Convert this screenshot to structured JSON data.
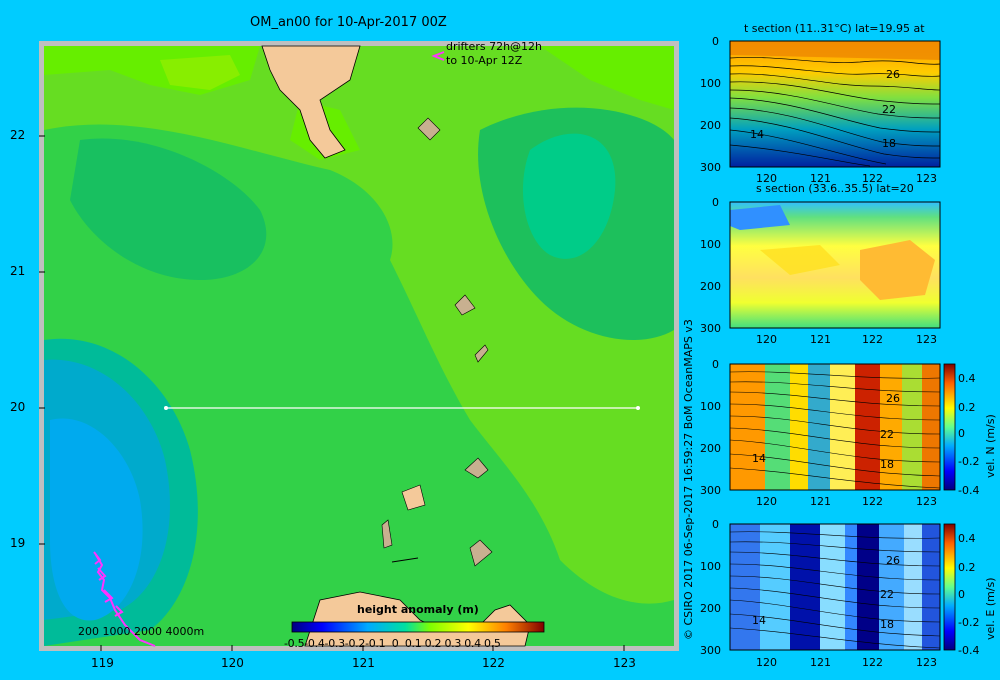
{
  "map": {
    "title": "OM_an00 for 10-Apr-2017 00Z",
    "drifters_line1": "drifters 72h@12h",
    "drifters_line2": "to 10-Apr 12Z",
    "lat_ticks": [
      "22",
      "21",
      "20",
      "19"
    ],
    "lon_ticks": [
      "119",
      "120",
      "121",
      "122",
      "123"
    ],
    "depth_legend": "200  1000  2000  4000m",
    "colorbar_label": "height anomaly (m)",
    "colorbar_ticks": [
      "-0.5",
      "-0.4",
      "-0.3",
      "-0.2",
      "-0.1",
      "0",
      "0.1",
      "0.2",
      "0.3",
      "0.4",
      "0.5"
    ],
    "section_line": {
      "lat": 20,
      "lon_start": 119.5,
      "lon_end": 123.2
    }
  },
  "credit": "© CSIRO 2017   06-Sep-2017 16:59:27 BoM OceanMAPS v3",
  "panels": [
    {
      "title": "t section (11..31°C) lat=19.95 at",
      "yticks": [
        "0",
        "100",
        "200",
        "300"
      ],
      "xticks": [
        "120",
        "121",
        "122",
        "123"
      ],
      "contour_labels": [
        "26",
        "22",
        "18",
        "14"
      ]
    },
    {
      "title": "s section (33.6..35.5) lat=20",
      "yticks": [
        "0",
        "100",
        "200",
        "300"
      ],
      "xticks": [
        "120",
        "121",
        "122",
        "123"
      ]
    },
    {
      "yticks": [
        "0",
        "100",
        "200",
        "300"
      ],
      "xticks": [
        "120",
        "121",
        "122",
        "123"
      ],
      "contour_labels": [
        "26",
        "22",
        "18",
        "14"
      ],
      "cb_label": "vel. N (m/s)",
      "cb_ticks": [
        "0.4",
        "0.2",
        "0",
        "-0.2",
        "-0.4"
      ]
    },
    {
      "yticks": [
        "0",
        "100",
        "200",
        "300"
      ],
      "xticks": [
        "120",
        "121",
        "122",
        "123"
      ],
      "contour_labels": [
        "26",
        "22",
        "18",
        "14"
      ],
      "cb_label": "vel. E (m/s)",
      "cb_ticks": [
        "0.4",
        "0.2",
        "0",
        "-0.2",
        "-0.4"
      ]
    }
  ],
  "colors": {
    "background": "#00ccff",
    "land": "#f4c99a",
    "frame": "#bfbfbf",
    "drifter": "#ff33ff"
  }
}
